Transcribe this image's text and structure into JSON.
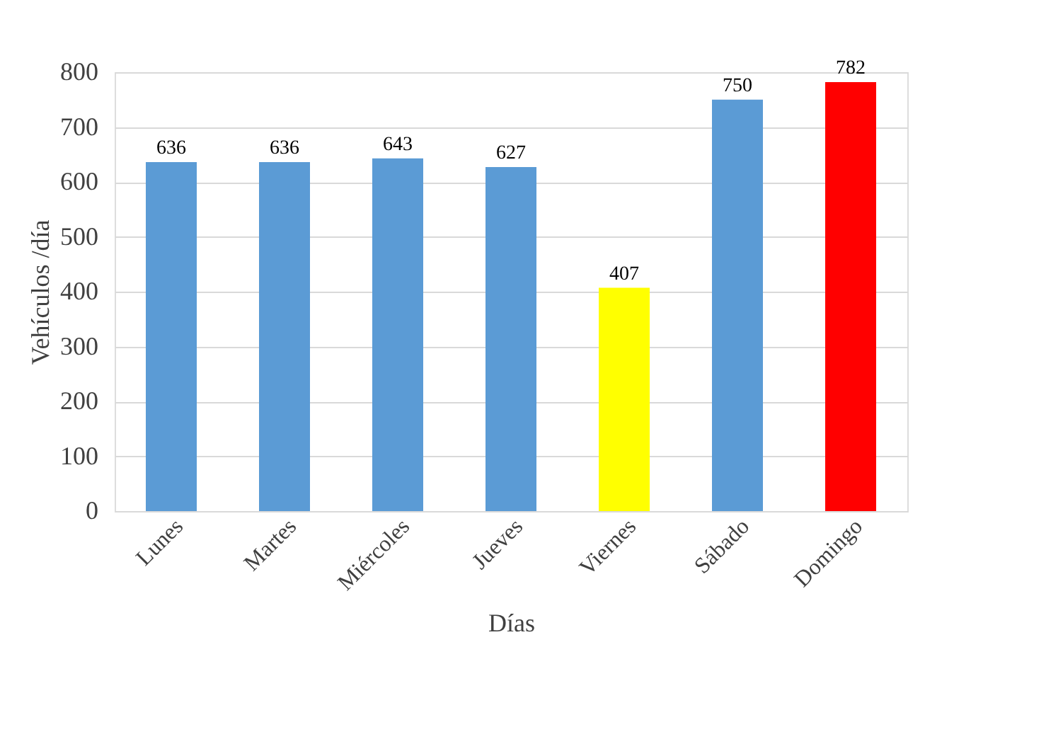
{
  "chart_data": {
    "type": "bar",
    "xlabel": "Días",
    "ylabel": "Vehículos /día",
    "categories": [
      "Lunes",
      "Martes",
      "Miércoles",
      "Jueves",
      "Viernes",
      "Sábado",
      "Domingo"
    ],
    "values": [
      636,
      636,
      643,
      627,
      407,
      750,
      782
    ],
    "colors": [
      "#5b9bd5",
      "#5b9bd5",
      "#5b9bd5",
      "#5b9bd5",
      "#ffff00",
      "#5b9bd5",
      "#ff0000"
    ],
    "ylim": [
      0,
      800
    ],
    "yticks": [
      0,
      100,
      200,
      300,
      400,
      500,
      600,
      700,
      800
    ],
    "grid": "y",
    "data_labels": true
  }
}
